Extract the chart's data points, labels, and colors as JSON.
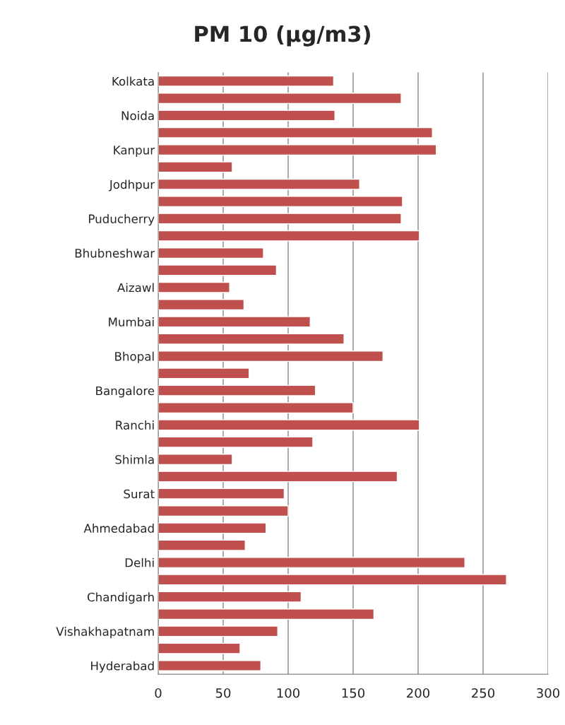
{
  "chart_data": {
    "type": "bar",
    "orientation": "horizontal",
    "title": "PM 10 (µg/m3)",
    "categories": [
      "Kolkata",
      null,
      "Noida",
      null,
      "Kanpur",
      null,
      "Jodhpur",
      null,
      "Puducherry",
      null,
      "Bhubneshwar",
      null,
      "Aizawl",
      null,
      "Mumbai",
      null,
      "Bhopal",
      null,
      "Bangalore",
      null,
      "Ranchi",
      null,
      "Shimla",
      null,
      "Surat",
      null,
      "Ahmedabad",
      null,
      "Delhi",
      null,
      "Chandigarh",
      null,
      "Vishakhapatnam",
      null,
      "Hyderabad"
    ],
    "values": [
      135,
      187,
      136,
      211,
      214,
      57,
      155,
      188,
      187,
      201,
      81,
      91,
      55,
      66,
      117,
      143,
      173,
      70,
      121,
      150,
      201,
      119,
      57,
      184,
      97,
      100,
      83,
      67,
      236,
      268,
      110,
      166,
      92,
      63,
      79
    ],
    "color": "#c0504d",
    "xlim": [
      0,
      300
    ],
    "xticks": [
      0,
      50,
      100,
      150,
      200,
      250,
      300
    ],
    "grid": "x"
  }
}
